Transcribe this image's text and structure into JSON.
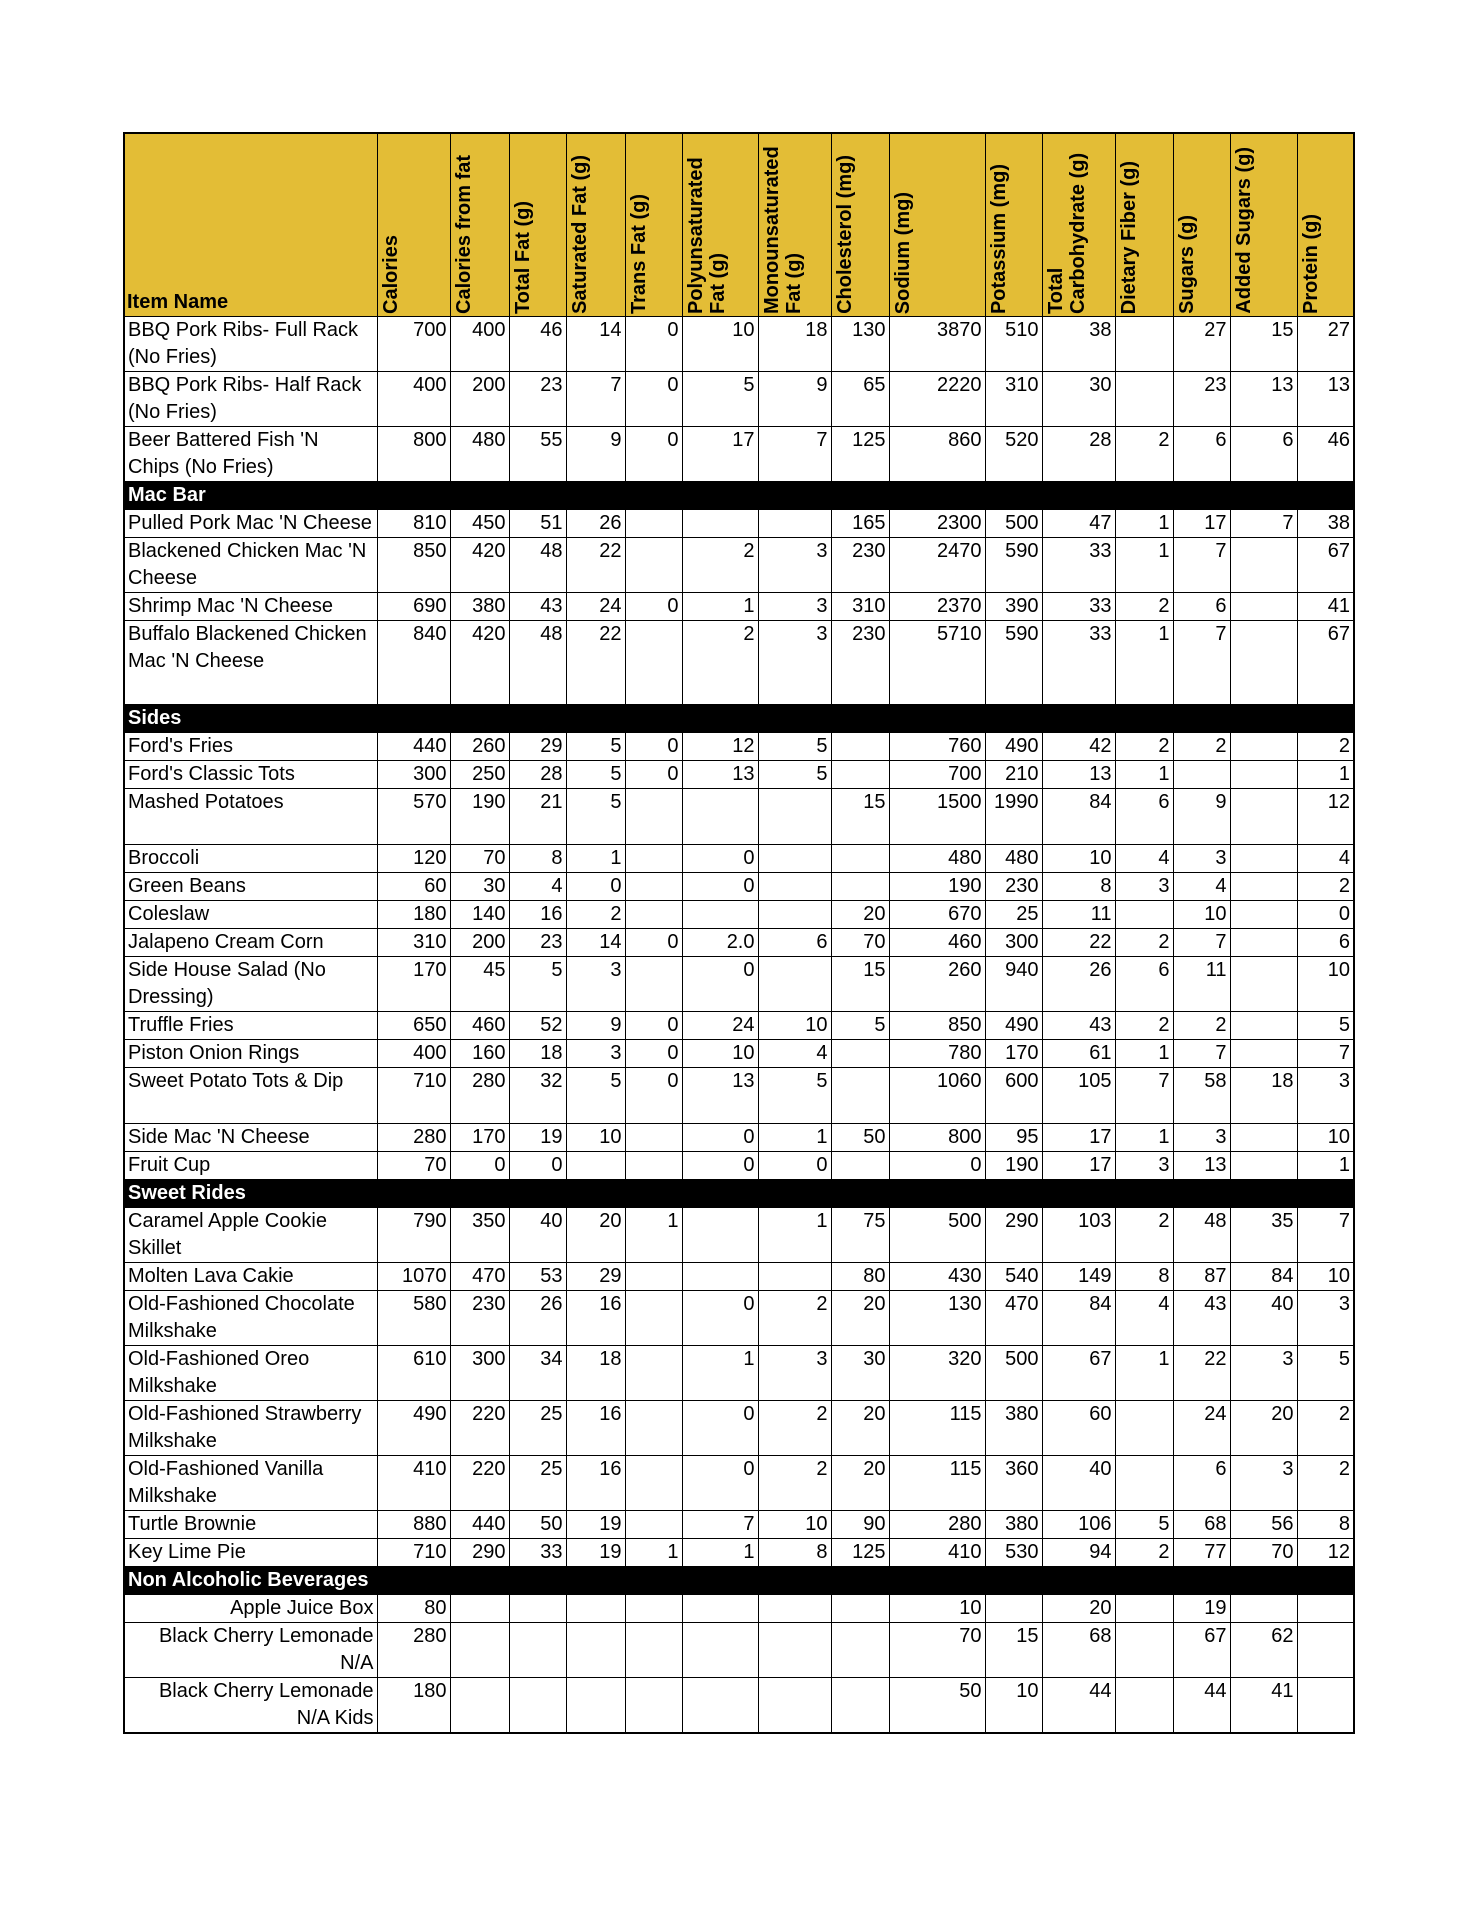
{
  "table": {
    "headers": [
      "Item Name",
      "Calories",
      "Calories from fat",
      "Total Fat (g)",
      "Saturated Fat (g)",
      "Trans Fat (g)",
      "Polyunsaturated Fat (g)",
      "Monounsaturated Fat (g)",
      "Cholesterol (mg)",
      "Sodium (mg)",
      "Potassium (mg)",
      "Total Carbohydrate (g)",
      "Dietary Fiber (g)",
      "Sugars (g)",
      "Added Sugars (g)",
      "Protein (g)"
    ],
    "rows": [
      [
        "BBQ Pork Ribs- Full Rack (No Fries)",
        "700",
        "400",
        "46",
        "14",
        "0",
        "10",
        "18",
        "130",
        "3870",
        "510",
        "38",
        null,
        "27",
        "15",
        "27"
      ],
      [
        "BBQ Pork Ribs- Half Rack (No Fries)",
        "400",
        "200",
        "23",
        "7",
        "0",
        "5",
        "9",
        "65",
        "2220",
        "310",
        "30",
        null,
        "23",
        "13",
        "13"
      ],
      [
        "Beer Battered Fish 'N Chips (No Fries)",
        "800",
        "480",
        "55",
        "9",
        "0",
        "17",
        "7",
        "125",
        "860",
        "520",
        "28",
        "2",
        "6",
        "6",
        "46"
      ]
    ],
    "sections": [
      {
        "title": "Mac Bar",
        "rows": [
          [
            "Pulled Pork Mac 'N Cheese",
            "810",
            "450",
            "51",
            "26",
            null,
            null,
            null,
            "165",
            "2300",
            "500",
            "47",
            "1",
            "17",
            "7",
            "38"
          ],
          [
            "Blackened Chicken Mac 'N Cheese",
            "850",
            "420",
            "48",
            "22",
            null,
            "2",
            "3",
            "230",
            "2470",
            "590",
            "33",
            "1",
            "7",
            null,
            "67"
          ],
          [
            "Shrimp Mac 'N Cheese",
            "690",
            "380",
            "43",
            "24",
            "0",
            "1",
            "3",
            "310",
            "2370",
            "390",
            "33",
            "2",
            "6",
            null,
            "41"
          ],
          [
            "Buffalo Blackened Chicken Mac 'N Cheese",
            "840",
            "420",
            "48",
            "22",
            null,
            "2",
            "3",
            "230",
            "5710",
            "590",
            "33",
            "1",
            "7",
            null,
            "67"
          ]
        ]
      },
      {
        "title": "Sides",
        "rows": [
          [
            "Ford's Fries",
            "440",
            "260",
            "29",
            "5",
            "0",
            "12",
            "5",
            null,
            "760",
            "490",
            "42",
            "2",
            "2",
            null,
            "2"
          ],
          [
            "Ford's Classic Tots",
            "300",
            "250",
            "28",
            "5",
            "0",
            "13",
            "5",
            null,
            "700",
            "210",
            "13",
            "1",
            null,
            null,
            "1"
          ],
          [
            "Mashed Potatoes",
            "570",
            "190",
            "21",
            "5",
            null,
            null,
            null,
            "15",
            "1500",
            "1990",
            "84",
            "6",
            "9",
            null,
            "12"
          ],
          [
            "Broccoli",
            "120",
            "70",
            "8",
            "1",
            null,
            "0",
            null,
            null,
            "480",
            "480",
            "10",
            "4",
            "3",
            null,
            "4"
          ],
          [
            "Green Beans",
            "60",
            "30",
            "4",
            "0",
            null,
            "0",
            null,
            null,
            "190",
            "230",
            "8",
            "3",
            "4",
            null,
            "2"
          ],
          [
            "Coleslaw",
            "180",
            "140",
            "16",
            "2",
            null,
            null,
            null,
            "20",
            "670",
            "25",
            "11",
            null,
            "10",
            null,
            "0"
          ],
          [
            "Jalapeno Cream Corn",
            "310",
            "200",
            "23",
            "14",
            "0",
            "2.0",
            "6",
            "70",
            "460",
            "300",
            "22",
            "2",
            "7",
            null,
            "6"
          ],
          [
            "Side House Salad (No Dressing)",
            "170",
            "45",
            "5",
            "3",
            null,
            "0",
            null,
            "15",
            "260",
            "940",
            "26",
            "6",
            "11",
            null,
            "10"
          ],
          [
            "Truffle Fries",
            "650",
            "460",
            "52",
            "9",
            "0",
            "24",
            "10",
            "5",
            "850",
            "490",
            "43",
            "2",
            "2",
            null,
            "5"
          ],
          [
            "Piston Onion Rings",
            "400",
            "160",
            "18",
            "3",
            "0",
            "10",
            "4",
            null,
            "780",
            "170",
            "61",
            "1",
            "7",
            null,
            "7"
          ],
          [
            "Sweet Potato Tots & Dip",
            "710",
            "280",
            "32",
            "5",
            "0",
            "13",
            "5",
            null,
            "1060",
            "600",
            "105",
            "7",
            "58",
            "18",
            "3"
          ],
          [
            "Side Mac 'N Cheese",
            "280",
            "170",
            "19",
            "10",
            null,
            "0",
            "1",
            "50",
            "800",
            "95",
            "17",
            "1",
            "3",
            null,
            "10"
          ],
          [
            "Fruit Cup",
            "70",
            "0",
            "0",
            null,
            null,
            "0",
            "0",
            null,
            "0",
            "190",
            "17",
            "3",
            "13",
            null,
            "1"
          ]
        ]
      },
      {
        "title": "Sweet Rides",
        "rows": [
          [
            "Caramel Apple Cookie Skillet",
            "790",
            "350",
            "40",
            "20",
            "1",
            null,
            "1",
            "75",
            "500",
            "290",
            "103",
            "2",
            "48",
            "35",
            "7"
          ],
          [
            "Molten Lava Cakie",
            "1070",
            "470",
            "53",
            "29",
            null,
            null,
            null,
            "80",
            "430",
            "540",
            "149",
            "8",
            "87",
            "84",
            "10"
          ],
          [
            "Old-Fashioned Chocolate Milkshake",
            "580",
            "230",
            "26",
            "16",
            null,
            "0",
            "2",
            "20",
            "130",
            "470",
            "84",
            "4",
            "43",
            "40",
            "3"
          ],
          [
            "Old-Fashioned Oreo Milkshake",
            "610",
            "300",
            "34",
            "18",
            null,
            "1",
            "3",
            "30",
            "320",
            "500",
            "67",
            "1",
            "22",
            "3",
            "5"
          ],
          [
            "Old-Fashioned Strawberry Milkshake",
            "490",
            "220",
            "25",
            "16",
            null,
            "0",
            "2",
            "20",
            "115",
            "380",
            "60",
            null,
            "24",
            "20",
            "2"
          ],
          [
            "Old-Fashioned Vanilla Milkshake",
            "410",
            "220",
            "25",
            "16",
            null,
            "0",
            "2",
            "20",
            "115",
            "360",
            "40",
            null,
            "6",
            "3",
            "2"
          ],
          [
            "Turtle Brownie",
            "880",
            "440",
            "50",
            "19",
            null,
            "7",
            "10",
            "90",
            "280",
            "380",
            "106",
            "5",
            "68",
            "56",
            "8"
          ],
          [
            "Key Lime Pie",
            "710",
            "290",
            "33",
            "19",
            "1",
            "1",
            "8",
            "125",
            "410",
            "530",
            "94",
            "2",
            "77",
            "70",
            "12"
          ]
        ]
      },
      {
        "title": "Non Alcoholic Beverages",
        "rows": [
          [
            "Apple Juice Box",
            "80",
            null,
            null,
            null,
            null,
            null,
            null,
            null,
            "10",
            null,
            "20",
            null,
            "19",
            null,
            null
          ],
          [
            "Black Cherry Lemonade N/A",
            "280",
            null,
            null,
            null,
            null,
            null,
            null,
            null,
            "70",
            "15",
            "68",
            null,
            "67",
            "62",
            null
          ],
          [
            "Black Cherry Lemonade N/A Kids",
            "180",
            null,
            null,
            null,
            null,
            null,
            null,
            null,
            "50",
            "10",
            "44",
            null,
            "44",
            "41",
            null
          ]
        ]
      }
    ]
  }
}
